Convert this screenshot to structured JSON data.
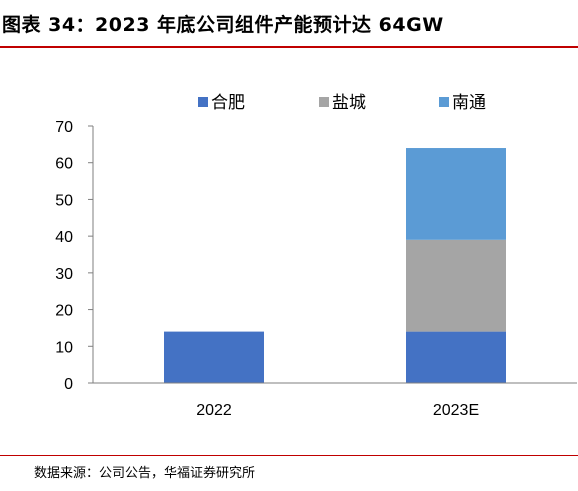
{
  "title": "图表 34：2023 年底公司组件产能预计达 64GW",
  "source": "数据来源：公司公告，华福证券研究所",
  "colors": {
    "accent_rule": "#c00000"
  },
  "chart_data": {
    "type": "bar",
    "stacked": true,
    "categories": [
      "2022",
      "2023E"
    ],
    "series": [
      {
        "name": "合肥",
        "values": [
          14,
          14
        ],
        "color": "#4472c4"
      },
      {
        "name": "盐城",
        "values": [
          0,
          25
        ],
        "color": "#a5a5a5"
      },
      {
        "name": "南通",
        "values": [
          0,
          25
        ],
        "color": "#5b9bd5"
      }
    ],
    "ylim": [
      0,
      70
    ],
    "yticks": [
      0,
      10,
      20,
      30,
      40,
      50,
      60,
      70
    ],
    "grid": false,
    "legend": "top-right"
  }
}
